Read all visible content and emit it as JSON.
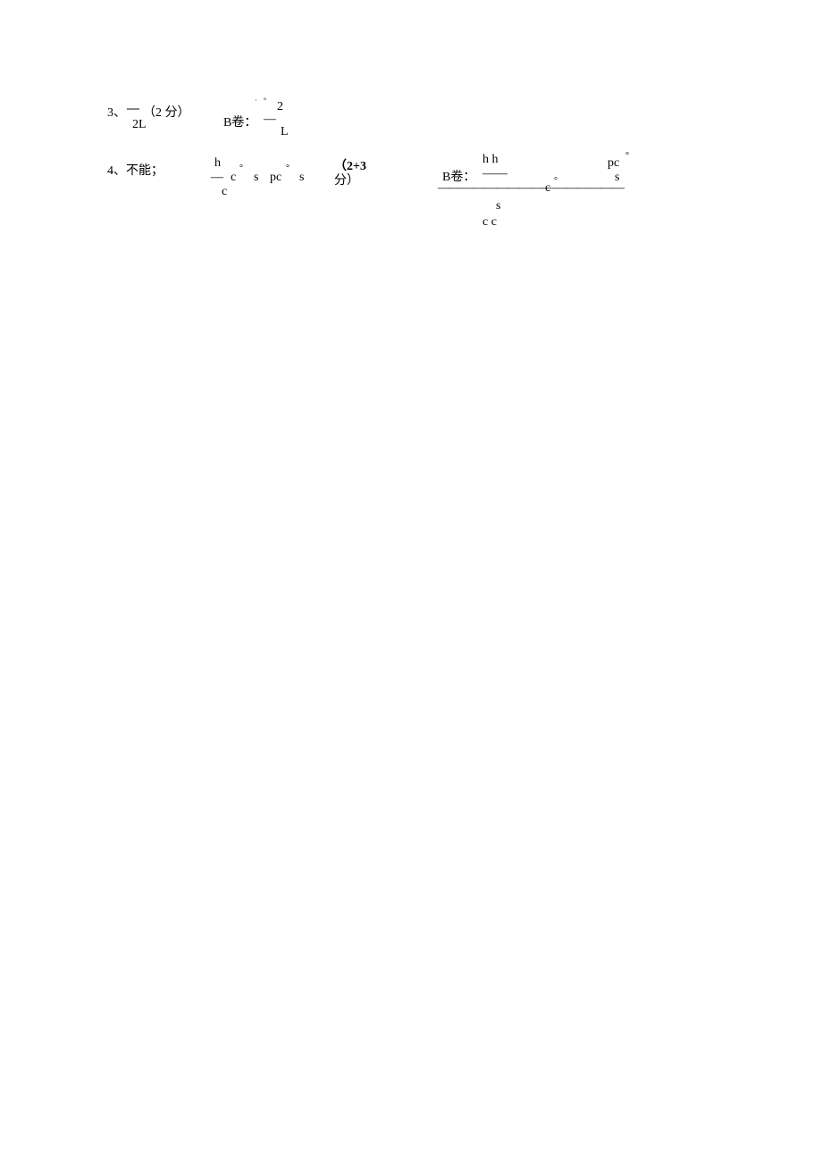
{
  "colors": {
    "background": "#ffffff",
    "text": "#000000"
  },
  "typography": {
    "font_family": "SimSun, serif",
    "font_size": 14
  },
  "row3": {
    "label": "3、",
    "dash1": "—",
    "points": "（2 分）",
    "two_l": "2L",
    "small_dot": "·",
    "small_deg": "°",
    "two": "2",
    "b_label": "B卷：",
    "dash2": "—",
    "big_l": "L"
  },
  "row4": {
    "label": "4、不能；",
    "h1": "h",
    "dash_h1": "—",
    "c1": "c",
    "cs1": "c",
    "deg1": "°",
    "s1": "s",
    "pcs1": "pc",
    "deg2": "°",
    "s2": "s",
    "points2": "（2+3",
    "points2b": "分）",
    "b_label2": "B卷：",
    "hh": "h h",
    "dash_hh": "——",
    "long_dash": "————————————————",
    "c_deg": "c",
    "deg3": "°",
    "s3": "s",
    "cc": "c c",
    "pc2": "pc",
    "deg4": "°",
    "s4": "s"
  }
}
